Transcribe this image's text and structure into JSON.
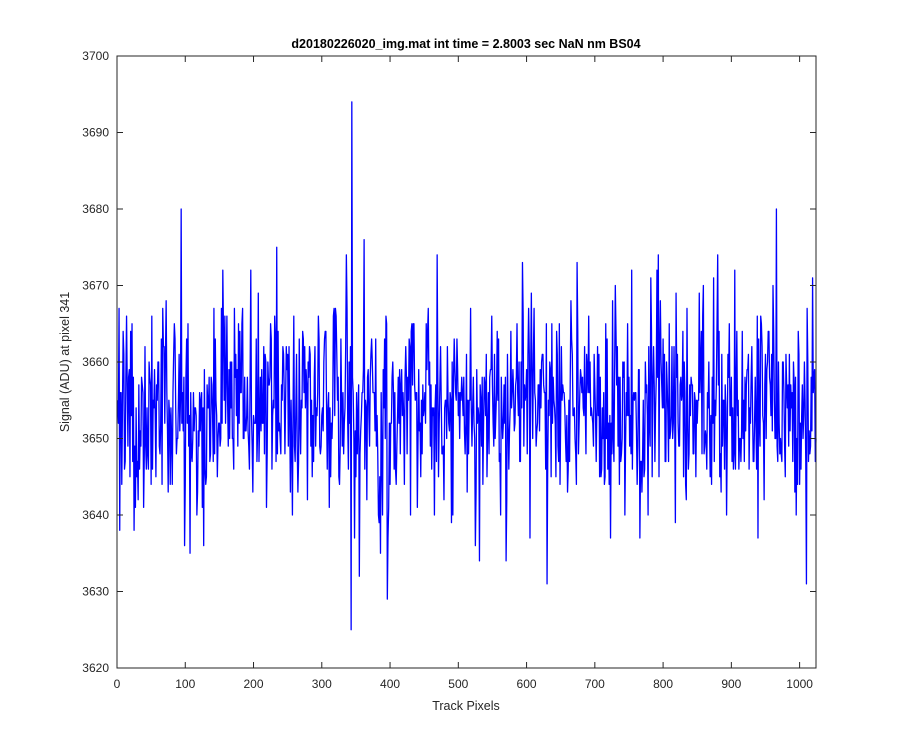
{
  "chart_data": {
    "type": "line",
    "title": "d20180226020_img.mat int time = 2.8003 sec  NaN nm BS04",
    "xlabel": "Track Pixels",
    "ylabel": "Signal (ADU) at pixel 341",
    "xlim": [
      0,
      1024
    ],
    "ylim": [
      3620,
      3700
    ],
    "xticks": [
      0,
      100,
      200,
      300,
      400,
      500,
      600,
      700,
      800,
      900,
      1000
    ],
    "yticks": [
      3620,
      3630,
      3640,
      3650,
      3660,
      3670,
      3680,
      3690,
      3700
    ],
    "grid": false,
    "series": [
      {
        "color": "#0000ff",
        "noise": {
          "n_points": 1024,
          "x_start": 1,
          "mean": 3654,
          "std": 7,
          "min": 3625,
          "max": 3694,
          "seed": 20180226
        },
        "notable_points": [
          {
            "x": 94,
            "y": 3680
          },
          {
            "x": 99,
            "y": 3636
          },
          {
            "x": 155,
            "y": 3672
          },
          {
            "x": 196,
            "y": 3672
          },
          {
            "x": 337,
            "y": 3667
          },
          {
            "x": 343,
            "y": 3625
          },
          {
            "x": 344,
            "y": 3694
          },
          {
            "x": 355,
            "y": 3632
          },
          {
            "x": 362,
            "y": 3676
          },
          {
            "x": 386,
            "y": 3635
          },
          {
            "x": 396,
            "y": 3629
          },
          {
            "x": 531,
            "y": 3634
          },
          {
            "x": 630,
            "y": 3631
          },
          {
            "x": 674,
            "y": 3673
          },
          {
            "x": 723,
            "y": 3637
          },
          {
            "x": 766,
            "y": 3637
          },
          {
            "x": 880,
            "y": 3674
          },
          {
            "x": 905,
            "y": 3672
          },
          {
            "x": 966,
            "y": 3680
          },
          {
            "x": 1010,
            "y": 3631
          },
          {
            "x": 1019,
            "y": 3671
          }
        ]
      }
    ]
  }
}
